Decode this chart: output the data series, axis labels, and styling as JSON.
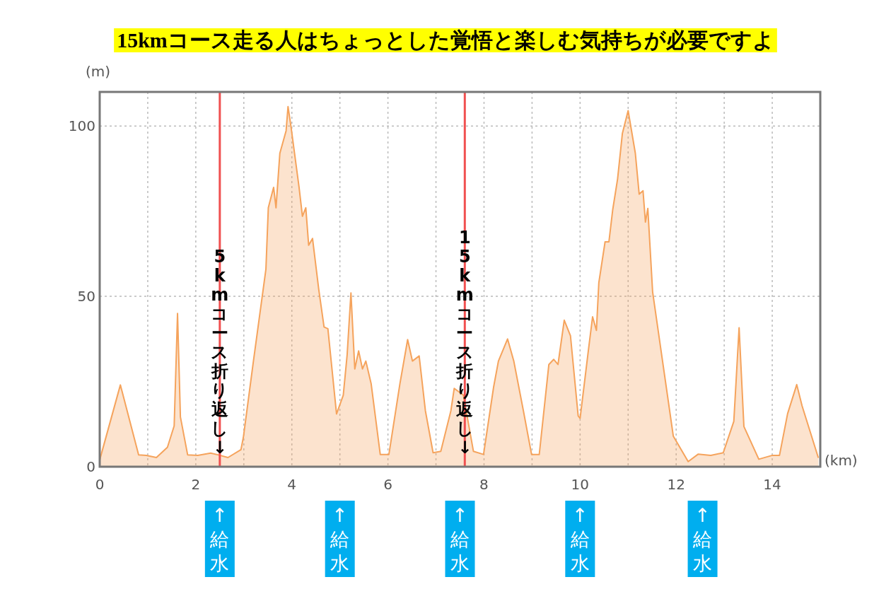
{
  "chart_data": {
    "type": "area",
    "title": "15kmコース走る人はちょっとした覚悟と楽しむ気持ちが必要ですよ",
    "xlabel": "(km)",
    "ylabel": "(m)",
    "x": [
      0,
      0.43,
      0.81,
      0.97,
      1.18,
      1.41,
      1.55,
      1.62,
      1.68,
      1.83,
      2.04,
      2.31,
      2.46,
      2.67,
      2.94,
      2.99,
      3.2,
      3.46,
      3.51,
      3.62,
      3.67,
      3.75,
      3.88,
      3.92,
      3.98,
      4.15,
      4.22,
      4.29,
      4.35,
      4.43,
      4.56,
      4.67,
      4.75,
      4.93,
      5.07,
      5.15,
      5.23,
      5.31,
      5.39,
      5.47,
      5.54,
      5.65,
      5.84,
      6.02,
      6.25,
      6.41,
      6.51,
      6.65,
      6.78,
      6.94,
      7.1,
      7.31,
      7.38,
      7.57,
      7.78,
      7.99,
      8.2,
      8.3,
      8.49,
      8.62,
      8.82,
      8.99,
      9.15,
      9.35,
      9.45,
      9.54,
      9.67,
      9.8,
      9.96,
      10.0,
      10.18,
      10.26,
      10.34,
      10.39,
      10.52,
      10.6,
      10.68,
      10.78,
      10.88,
      11.0,
      11.15,
      11.23,
      11.31,
      11.36,
      11.41,
      11.51,
      11.94,
      12.25,
      12.46,
      12.72,
      12.98,
      13.2,
      13.31,
      13.41,
      13.72,
      13.99,
      14.15,
      14.32,
      14.51,
      14.62,
      14.96
    ],
    "series": [
      {
        "color": "#f5a35c",
        "values": [
          2,
          24,
          3.5,
          3.3,
          2.7,
          5.7,
          12,
          45,
          14.6,
          3.5,
          3.3,
          4,
          3.5,
          2.7,
          5,
          8.6,
          31,
          58,
          76,
          82,
          76,
          92,
          98.6,
          105.7,
          100,
          82,
          73.5,
          76,
          65,
          67,
          52,
          41,
          40.5,
          15.5,
          21,
          32.7,
          51,
          28.7,
          34,
          28.7,
          31,
          24.4,
          3.6,
          3.6,
          24.4,
          37.3,
          31,
          32.5,
          16.4,
          4.1,
          4.5,
          16.4,
          23,
          21,
          4.5,
          3.6,
          23.4,
          31,
          37.5,
          31,
          16.4,
          3.6,
          3.6,
          30,
          31.5,
          30,
          43,
          38.4,
          14.9,
          14.2,
          35,
          44,
          40,
          54,
          66,
          66,
          75.5,
          84.4,
          97.8,
          104.5,
          92,
          80,
          81,
          71.8,
          75.8,
          51.3,
          9,
          1.5,
          3.7,
          3.3,
          4.1,
          13.3,
          40.8,
          11.8,
          2.2,
          3.3,
          3.3,
          15.6,
          24.1,
          17.9,
          2.6
        ]
      }
    ],
    "xlim": [
      0,
      15
    ],
    "xticks": [
      0,
      {
        "value": 1,
        "label": null
      },
      2,
      {
        "value": 3,
        "label": null
      },
      4,
      {
        "value": 5,
        "label": null
      },
      6,
      {
        "value": 7,
        "label": null
      },
      8,
      {
        "value": 9,
        "label": null
      },
      10,
      {
        "value": 11,
        "label": null
      },
      12,
      {
        "value": 13,
        "label": null
      },
      14
    ],
    "ylim": [
      0,
      110
    ],
    "yticks": [
      0,
      50,
      100
    ],
    "grid": true,
    "ref_lines": [
      {
        "axis": "x",
        "value": 2.5,
        "label": "5kmコース折り返し↓",
        "color": "#f05050"
      },
      {
        "axis": "x",
        "value": 7.6,
        "label": "15kmコース折り返し↓",
        "color": "#f05050"
      }
    ],
    "annotations": [
      {
        "text": "↑給水",
        "x": 2.5,
        "y": 0
      },
      {
        "text": "↑給水",
        "x": 5.0,
        "y": 0
      },
      {
        "text": "↑給水",
        "x": 7.5,
        "y": 0
      },
      {
        "text": "↑給水",
        "x": 10.0,
        "y": 0
      },
      {
        "text": "↑給水",
        "x": 12.55,
        "y": 0
      }
    ]
  }
}
